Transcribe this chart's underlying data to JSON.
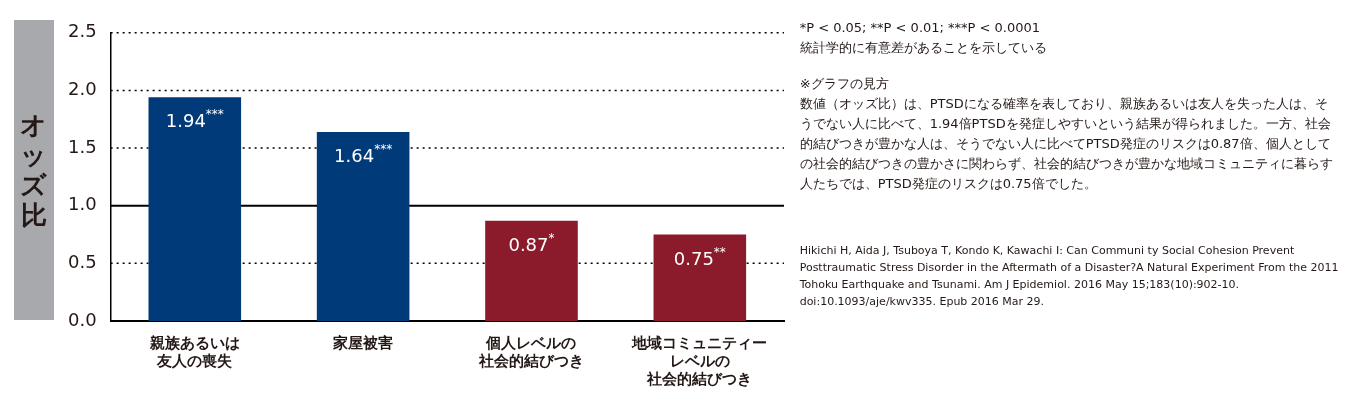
{
  "chart_data": {
    "type": "bar",
    "ylabel": "オッズ比",
    "categories": [
      "親族あるいは友人の喪失",
      "家屋被害",
      "個人レベルの社会的結びつき",
      "地域コミュニティーレベルの社会的結びつき"
    ],
    "values": [
      1.94,
      1.64,
      0.87,
      0.75
    ],
    "colors": [
      "#003a78",
      "#003a78",
      "#8b1a2a",
      "#8b1a2a"
    ],
    "value_labels": [
      "1.94$^{***}$",
      "1.64$^{***}$",
      "0.87$^{*}$",
      "0.75$^{**}$"
    ],
    "ylim": [
      0,
      2.5
    ],
    "yticks": [
      {
        "value": 0,
        "label": "0.0"
      },
      {
        "value": 0.5,
        "label": "0.5"
      },
      {
        "value": 1,
        "label": "1.0"
      },
      {
        "value": 1.5,
        "label": "1.5"
      },
      {
        "value": 2,
        "label": "2.0"
      },
      {
        "value": 2.5,
        "label": "2.5"
      }
    ],
    "grid": "y",
    "ref_lines": [
      {
        "axis": "y",
        "value": 1,
        "color": "#000000",
        "line_style": "solid"
      }
    ],
    "annotations": [
      "*P < 0.05; **P < 0.01; ***P < 0.0001",
      "統計学的に有意差があることを示している",
      "※グラフの見方",
      "数値（オッズ比）は、PTSDになる確率を表しており、親族あるいは友人を失った人は、そうでない人に比べて、1.94倍PTSDを発症しやすいという結果が得られました。一方、社会的結びつきが豊かな人は、そうでない人に比べてPTSD発症のリスクは0.87倍、個人としての社会的結びつきの豊かさに関わらず、社会的結びつきが豊かな地域コミュニティに暮らす人たちでは、PTSD発症のリスクは0.75倍でした。",
      "Hikichi H, Aida J, Tsuboya T, Kondo K, Kawachi I: Can Communi ty Social Cohesion Prevent Posttraumatic Stress Disorder in the Aftermath of a Disaster?A Natural Experiment From the 2011 Tohoku Earthquake and Tsunami. Am J Epidemiol. 2016 May 15;183(10):902-10. doi:10.1093/aje/kwv335. Epub 2016 Mar 29."
    ]
  }
}
